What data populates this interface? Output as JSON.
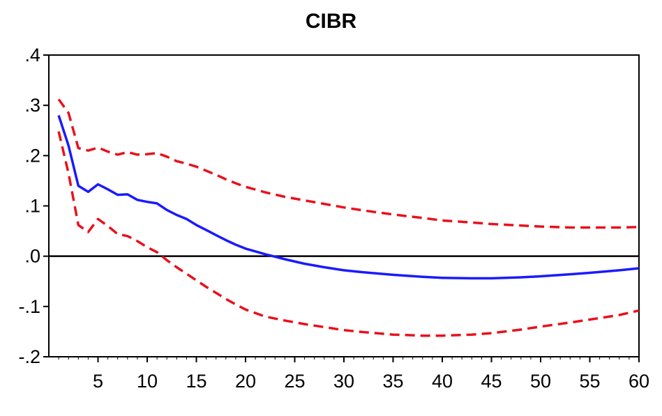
{
  "chart_data": {
    "type": "line",
    "title": "CIBR",
    "xlabel": "",
    "ylabel": "",
    "xlim": [
      0,
      60
    ],
    "ylim": [
      -0.2,
      0.4
    ],
    "x_ticks": [
      5,
      10,
      15,
      20,
      25,
      30,
      35,
      40,
      45,
      50,
      55,
      60
    ],
    "x_tick_labels": [
      "5",
      "10",
      "15",
      "20",
      "25",
      "30",
      "35",
      "40",
      "45",
      "50",
      "55",
      "60"
    ],
    "y_ticks": [
      0.4,
      0.3,
      0.2,
      0.1,
      0.0,
      -0.1,
      -0.2
    ],
    "y_tick_labels": [
      ".4",
      ".3",
      ".2",
      ".1",
      ".0",
      "-.1",
      "-.2"
    ],
    "zero_line": true,
    "grid": false,
    "legend": "none",
    "series": [
      {
        "role": "response",
        "color": "#1a1aff",
        "style": "solid",
        "points": [
          [
            1,
            0.28
          ],
          [
            2,
            0.22
          ],
          [
            3,
            0.14
          ],
          [
            4,
            0.128
          ],
          [
            5,
            0.143
          ],
          [
            6,
            0.133
          ],
          [
            7,
            0.122
          ],
          [
            8,
            0.123
          ],
          [
            9,
            0.112
          ],
          [
            10,
            0.108
          ],
          [
            11,
            0.105
          ],
          [
            12,
            0.092
          ],
          [
            13,
            0.082
          ],
          [
            14,
            0.074
          ],
          [
            15,
            0.062
          ],
          [
            16,
            0.052
          ],
          [
            17,
            0.042
          ],
          [
            18,
            0.032
          ],
          [
            19,
            0.023
          ],
          [
            20,
            0.015
          ],
          [
            22,
            0.004
          ],
          [
            24,
            -0.006
          ],
          [
            26,
            -0.015
          ],
          [
            28,
            -0.022
          ],
          [
            30,
            -0.028
          ],
          [
            32,
            -0.032
          ],
          [
            35,
            -0.037
          ],
          [
            38,
            -0.041
          ],
          [
            40,
            -0.043
          ],
          [
            43,
            -0.044
          ],
          [
            45,
            -0.044
          ],
          [
            48,
            -0.042
          ],
          [
            50,
            -0.04
          ],
          [
            53,
            -0.036
          ],
          [
            55,
            -0.033
          ],
          [
            58,
            -0.028
          ],
          [
            60,
            -0.024
          ]
        ]
      },
      {
        "role": "upper-bound",
        "color": "#e8111c",
        "style": "dashed",
        "points": [
          [
            1,
            0.312
          ],
          [
            2,
            0.285
          ],
          [
            3,
            0.215
          ],
          [
            4,
            0.21
          ],
          [
            5,
            0.216
          ],
          [
            6,
            0.208
          ],
          [
            7,
            0.202
          ],
          [
            8,
            0.207
          ],
          [
            9,
            0.202
          ],
          [
            10,
            0.203
          ],
          [
            11,
            0.205
          ],
          [
            12,
            0.198
          ],
          [
            13,
            0.189
          ],
          [
            14,
            0.184
          ],
          [
            15,
            0.178
          ],
          [
            16,
            0.17
          ],
          [
            17,
            0.162
          ],
          [
            18,
            0.153
          ],
          [
            19,
            0.145
          ],
          [
            20,
            0.138
          ],
          [
            22,
            0.127
          ],
          [
            24,
            0.118
          ],
          [
            26,
            0.111
          ],
          [
            28,
            0.104
          ],
          [
            30,
            0.097
          ],
          [
            32,
            0.091
          ],
          [
            35,
            0.083
          ],
          [
            38,
            0.076
          ],
          [
            40,
            0.071
          ],
          [
            43,
            0.067
          ],
          [
            45,
            0.064
          ],
          [
            48,
            0.061
          ],
          [
            50,
            0.059
          ],
          [
            53,
            0.057
          ],
          [
            55,
            0.057
          ],
          [
            58,
            0.057
          ],
          [
            60,
            0.058
          ]
        ]
      },
      {
        "role": "lower-bound",
        "color": "#e8111c",
        "style": "dashed",
        "points": [
          [
            1,
            0.248
          ],
          [
            2,
            0.165
          ],
          [
            3,
            0.062
          ],
          [
            4,
            0.048
          ],
          [
            5,
            0.074
          ],
          [
            6,
            0.06
          ],
          [
            7,
            0.044
          ],
          [
            8,
            0.04
          ],
          [
            9,
            0.03
          ],
          [
            10,
            0.018
          ],
          [
            11,
            0.008
          ],
          [
            12,
            -0.008
          ],
          [
            13,
            -0.022
          ],
          [
            14,
            -0.035
          ],
          [
            15,
            -0.048
          ],
          [
            16,
            -0.061
          ],
          [
            17,
            -0.073
          ],
          [
            18,
            -0.085
          ],
          [
            19,
            -0.096
          ],
          [
            20,
            -0.106
          ],
          [
            22,
            -0.12
          ],
          [
            24,
            -0.128
          ],
          [
            26,
            -0.135
          ],
          [
            28,
            -0.141
          ],
          [
            30,
            -0.147
          ],
          [
            32,
            -0.151
          ],
          [
            35,
            -0.156
          ],
          [
            38,
            -0.158
          ],
          [
            40,
            -0.158
          ],
          [
            43,
            -0.156
          ],
          [
            45,
            -0.153
          ],
          [
            48,
            -0.146
          ],
          [
            50,
            -0.14
          ],
          [
            53,
            -0.132
          ],
          [
            55,
            -0.126
          ],
          [
            58,
            -0.117
          ],
          [
            60,
            -0.108
          ]
        ]
      }
    ]
  }
}
